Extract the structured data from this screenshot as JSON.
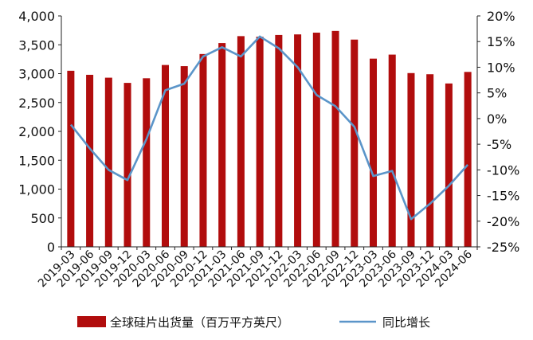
{
  "chart_data": {
    "type": "bar+line",
    "categories": [
      "2019-03",
      "2019-06",
      "2019-09",
      "2019-12",
      "2020-03",
      "2020-06",
      "2020-09",
      "2020-12",
      "2021-03",
      "2021-06",
      "2021-09",
      "2021-12",
      "2022-03",
      "2022-06",
      "2022-09",
      "2022-12",
      "2023-03",
      "2023-06",
      "2023-09",
      "2023-12",
      "2024-03",
      "2024-06"
    ],
    "series": [
      {
        "name": "全球硅片出货量（百万平方英尺）",
        "type": "bar",
        "axis": "left",
        "color": "#b10d0d",
        "values": [
          3050,
          2980,
          2930,
          2840,
          2920,
          3150,
          3130,
          3340,
          3530,
          3650,
          3640,
          3670,
          3680,
          3710,
          3740,
          3590,
          3260,
          3330,
          3010,
          2990,
          2830,
          3030
        ]
      },
      {
        "name": "同比增长",
        "type": "line",
        "axis": "right",
        "color": "#5b95c9",
        "values": [
          -1.2,
          -5.8,
          -10.0,
          -12.0,
          -4.0,
          5.5,
          6.8,
          12.1,
          13.9,
          12.1,
          16.0,
          13.7,
          10.0,
          4.6,
          2.4,
          -1.6,
          -11.2,
          -10.2,
          -19.6,
          -16.6,
          -13.1,
          -9.0
        ]
      }
    ],
    "y_left": {
      "ylim": [
        0,
        4000
      ],
      "ticks": [
        "0",
        "500",
        "1,000",
        "1,500",
        "2,000",
        "2,500",
        "3,000",
        "3,500",
        "4,000"
      ]
    },
    "y_right": {
      "ylim": [
        -25,
        20
      ],
      "ticks": [
        "-25%",
        "-20%",
        "-15%",
        "-10%",
        "-5%",
        "0%",
        "5%",
        "10%",
        "15%",
        "20%"
      ]
    },
    "grid": false,
    "legend_position": "bottom"
  }
}
